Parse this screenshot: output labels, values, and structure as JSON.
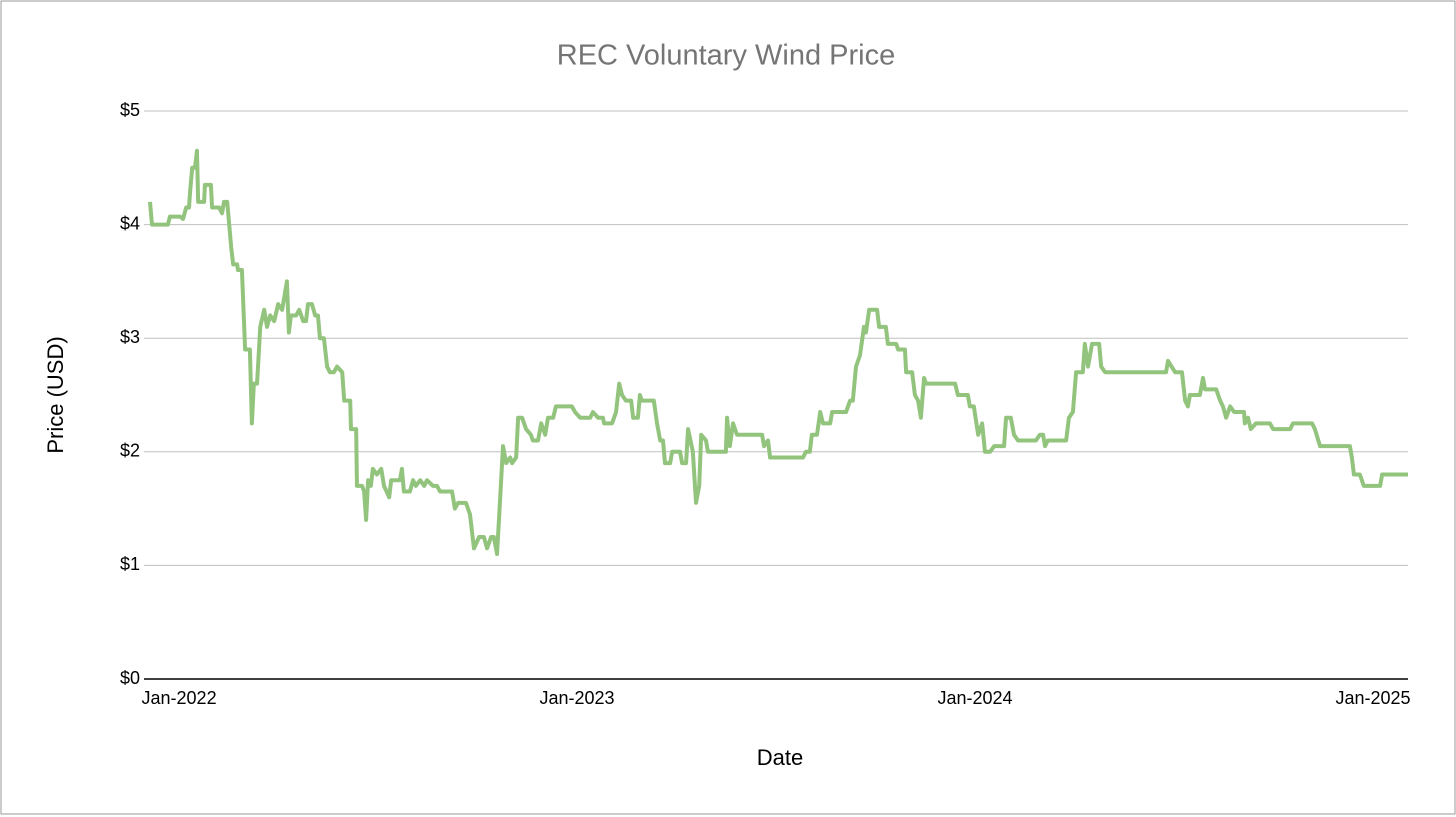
{
  "chart_data": {
    "type": "line",
    "title": "REC Voluntary Wind Price",
    "x_label": "Date",
    "y_label": "Price (USD)",
    "color": "#93c47d",
    "x": [
      2021.927,
      2021.932,
      2021.972,
      2021.977,
      2022.003,
      2022.01,
      2022.018,
      2022.025,
      2022.028,
      2022.033,
      2022.04,
      2022.045,
      2022.048,
      2022.063,
      2022.065,
      2022.08,
      2022.083,
      2022.101,
      2022.108,
      2022.113,
      2022.121,
      2022.126,
      2022.131,
      2022.136,
      2022.146,
      2022.148,
      2022.158,
      2022.166,
      2022.178,
      2022.183,
      2022.188,
      2022.196,
      2022.204,
      2022.214,
      2022.221,
      2022.229,
      2022.239,
      2022.249,
      2022.259,
      2022.271,
      2022.276,
      2022.281,
      2022.294,
      2022.302,
      2022.312,
      2022.319,
      2022.324,
      2022.334,
      2022.342,
      2022.349,
      2022.354,
      2022.364,
      2022.372,
      2022.379,
      2022.389,
      2022.397,
      2022.41,
      2022.415,
      2022.43,
      2022.432,
      2022.445,
      2022.447,
      2022.46,
      2022.465,
      2022.47,
      2022.475,
      2022.482,
      2022.487,
      2022.497,
      2022.508,
      2022.515,
      2022.528,
      2022.533,
      2022.555,
      2022.56,
      2022.565,
      2022.58,
      2022.588,
      2022.595,
      2022.606,
      2022.616,
      2022.623,
      2022.638,
      2022.648,
      2022.656,
      2022.686,
      2022.693,
      2022.701,
      2022.721,
      2022.731,
      2022.741,
      2022.754,
      2022.766,
      2022.774,
      2022.784,
      2022.791,
      2022.799,
      2022.807,
      2022.814,
      2022.822,
      2022.832,
      2022.837,
      2022.847,
      2022.852,
      2022.862,
      2022.872,
      2022.884,
      2022.889,
      2022.902,
      2022.91,
      2022.92,
      2022.927,
      2022.94,
      2022.947,
      2022.987,
      2022.995,
      2023.008,
      2023.033,
      2023.04,
      2023.053,
      2023.065,
      2023.068,
      2023.088,
      2023.098,
      2023.106,
      2023.113,
      2023.123,
      2023.136,
      2023.141,
      2023.153,
      2023.158,
      2023.163,
      2023.193,
      2023.201,
      2023.209,
      2023.216,
      2023.221,
      2023.234,
      2023.239,
      2023.259,
      2023.264,
      2023.274,
      2023.279,
      2023.291,
      2023.299,
      2023.307,
      2023.312,
      2023.324,
      2023.329,
      2023.374,
      2023.377,
      2023.384,
      2023.392,
      2023.402,
      2023.422,
      2023.465,
      2023.47,
      2023.48,
      2023.485,
      2023.568,
      2023.575,
      2023.585,
      2023.59,
      2023.603,
      2023.611,
      2023.618,
      2023.636,
      2023.641,
      2023.676,
      2023.686,
      2023.693,
      2023.701,
      2023.711,
      2023.721,
      2023.726,
      2023.734,
      2023.754,
      2023.759,
      2023.776,
      2023.781,
      2023.802,
      2023.807,
      2023.824,
      2023.827,
      2023.842,
      2023.849,
      2023.857,
      2023.864,
      2023.872,
      2023.877,
      2023.95,
      2023.957,
      2023.982,
      2023.987,
      2023.997,
      2024.008,
      2024.018,
      2024.025,
      2024.038,
      2024.048,
      2024.073,
      2024.078,
      2024.09,
      2024.098,
      2024.108,
      2024.153,
      2024.163,
      2024.171,
      2024.176,
      2024.183,
      2024.229,
      2024.236,
      2024.246,
      2024.254,
      2024.271,
      2024.276,
      2024.284,
      2024.294,
      2024.312,
      2024.317,
      2024.327,
      2024.48,
      2024.485,
      2024.503,
      2024.52,
      2024.528,
      2024.535,
      2024.54,
      2024.565,
      2024.573,
      2024.578,
      2024.606,
      2024.616,
      2024.623,
      2024.631,
      2024.641,
      2024.651,
      2024.676,
      2024.678,
      2024.686,
      2024.693,
      2024.706,
      2024.741,
      2024.749,
      2024.792,
      2024.799,
      2024.847,
      2024.854,
      2024.867,
      2024.942,
      2024.947,
      2024.952,
      2024.967,
      2024.977,
      2025.018,
      2025.023,
      2025.088
    ],
    "values": [
      4.2,
      4.0,
      4.0,
      4.07,
      4.07,
      4.05,
      4.15,
      4.15,
      4.3,
      4.5,
      4.5,
      4.65,
      4.2,
      4.2,
      4.35,
      4.35,
      4.15,
      4.15,
      4.1,
      4.2,
      4.2,
      4.0,
      3.8,
      3.65,
      3.65,
      3.6,
      3.6,
      2.9,
      2.9,
      2.25,
      2.6,
      2.6,
      3.1,
      3.25,
      3.1,
      3.2,
      3.15,
      3.3,
      3.25,
      3.5,
      3.05,
      3.2,
      3.2,
      3.25,
      3.15,
      3.15,
      3.3,
      3.3,
      3.2,
      3.2,
      3.0,
      3.0,
      2.75,
      2.7,
      2.7,
      2.75,
      2.7,
      2.45,
      2.45,
      2.2,
      2.2,
      1.7,
      1.7,
      1.65,
      1.4,
      1.75,
      1.7,
      1.85,
      1.8,
      1.85,
      1.7,
      1.6,
      1.75,
      1.75,
      1.85,
      1.65,
      1.65,
      1.75,
      1.7,
      1.75,
      1.7,
      1.75,
      1.7,
      1.7,
      1.65,
      1.65,
      1.5,
      1.55,
      1.55,
      1.45,
      1.15,
      1.25,
      1.25,
      1.15,
      1.25,
      1.25,
      1.1,
      1.6,
      2.05,
      1.9,
      1.95,
      1.9,
      1.95,
      2.3,
      2.3,
      2.2,
      2.15,
      2.1,
      2.1,
      2.25,
      2.15,
      2.3,
      2.3,
      2.4,
      2.4,
      2.35,
      2.3,
      2.3,
      2.35,
      2.3,
      2.3,
      2.25,
      2.25,
      2.35,
      2.6,
      2.5,
      2.45,
      2.45,
      2.3,
      2.3,
      2.5,
      2.45,
      2.45,
      2.25,
      2.1,
      2.1,
      1.9,
      1.9,
      2.0,
      2.0,
      1.9,
      1.9,
      2.2,
      2.0,
      1.55,
      1.7,
      2.15,
      2.1,
      2.0,
      2.0,
      2.3,
      2.05,
      2.25,
      2.15,
      2.15,
      2.15,
      2.05,
      2.1,
      1.95,
      1.95,
      2.0,
      2.0,
      2.15,
      2.15,
      2.35,
      2.25,
      2.25,
      2.35,
      2.35,
      2.45,
      2.45,
      2.75,
      2.85,
      3.1,
      3.05,
      3.25,
      3.25,
      3.1,
      3.1,
      2.95,
      2.95,
      2.9,
      2.9,
      2.7,
      2.7,
      2.5,
      2.45,
      2.3,
      2.65,
      2.6,
      2.6,
      2.5,
      2.5,
      2.4,
      2.4,
      2.15,
      2.25,
      2.0,
      2.0,
      2.05,
      2.05,
      2.3,
      2.3,
      2.15,
      2.1,
      2.1,
      2.15,
      2.15,
      2.05,
      2.1,
      2.1,
      2.3,
      2.35,
      2.7,
      2.7,
      2.95,
      2.75,
      2.95,
      2.95,
      2.75,
      2.7,
      2.7,
      2.8,
      2.7,
      2.7,
      2.45,
      2.4,
      2.5,
      2.5,
      2.65,
      2.55,
      2.55,
      2.45,
      2.4,
      2.3,
      2.4,
      2.35,
      2.35,
      2.25,
      2.3,
      2.2,
      2.25,
      2.25,
      2.2,
      2.2,
      2.25,
      2.25,
      2.2,
      2.05,
      2.05,
      1.95,
      1.8,
      1.8,
      1.7,
      1.7,
      1.8,
      1.8
    ],
    "xlim": [
      2021.927,
      2025.088
    ],
    "xticks": [
      {
        "value": 2022,
        "label": "Jan-2022"
      },
      {
        "value": 2023,
        "label": "Jan-2023"
      },
      {
        "value": 2024,
        "label": "Jan-2024"
      },
      {
        "value": 2025,
        "label": "Jan-2025"
      }
    ],
    "ylim": [
      0,
      5
    ],
    "yticks": [
      {
        "value": 0,
        "label": "$0"
      },
      {
        "value": 1,
        "label": "$1"
      },
      {
        "value": 2,
        "label": "$2"
      },
      {
        "value": 3,
        "label": "$3"
      },
      {
        "value": 4,
        "label": "$4"
      },
      {
        "value": 5,
        "label": "$5"
      }
    ],
    "grid": true
  }
}
